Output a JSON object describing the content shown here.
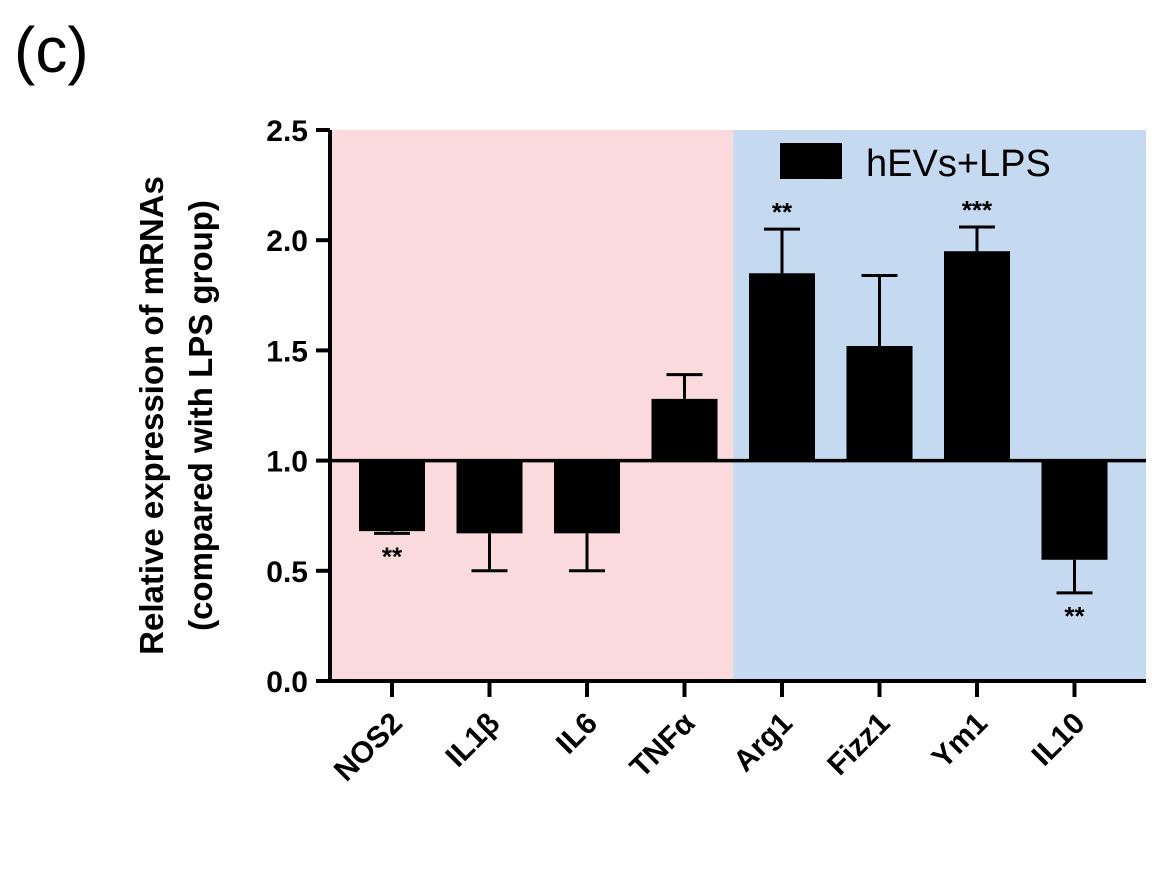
{
  "panel_label": "(c)",
  "chart_data": {
    "type": "bar",
    "ylabel": "Relative expression of mRNAs",
    "ylabel_line2": "(compared with LPS group)",
    "ylim": [
      0,
      2.5
    ],
    "yticks": [
      "0.0",
      "0.5",
      "1.0",
      "1.5",
      "2.0",
      "2.5"
    ],
    "baseline": 1.0,
    "categories": [
      "NOS2",
      "IL1β",
      "IL6",
      "TNFα",
      "Arg1",
      "Fizz1",
      "Ym1",
      "IL10"
    ],
    "series": [
      {
        "name": "hEVs+LPS",
        "color": "#000000",
        "values": [
          0.68,
          0.67,
          0.67,
          1.28,
          1.85,
          1.52,
          1.95,
          0.55
        ],
        "errors": [
          0.01,
          0.17,
          0.17,
          0.11,
          0.2,
          0.32,
          0.11,
          0.15
        ],
        "significance": [
          "**",
          "",
          "",
          "",
          "**",
          "",
          "***",
          "**"
        ]
      }
    ],
    "background_regions": [
      {
        "from_category": "NOS2",
        "to_category": "TNFα",
        "color": "#fadadd"
      },
      {
        "from_category": "Arg1",
        "to_category": "IL10",
        "color": "#c5d9f1"
      }
    ],
    "legend_position": "top-right",
    "grid": false
  }
}
